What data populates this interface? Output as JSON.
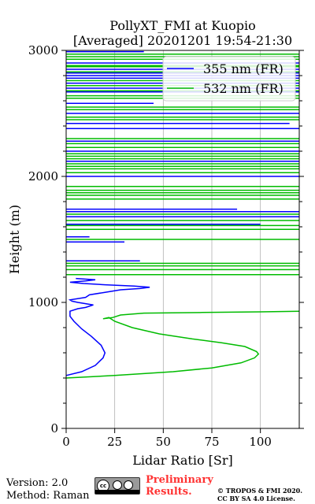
{
  "chart_data": {
    "type": "line",
    "title": "PollyXT_FMI at Kuopio",
    "subtitle": "[Averaged] 20201201 19:54-21:30",
    "xlabel": "Lidar Ratio [Sr]",
    "ylabel": "Height (m)",
    "xlim": [
      0,
      120
    ],
    "ylim": [
      0,
      3000
    ],
    "x_ticks": [
      0,
      25,
      50,
      75,
      100
    ],
    "y_ticks": [
      0,
      1000,
      2000,
      3000
    ],
    "grid": "vertical",
    "legend_position": "top-right",
    "colors": {
      "355": "#0000ff",
      "532": "#00bb00"
    },
    "series": [
      {
        "name": "355 nm (FR)",
        "color": "#0000ff",
        "points": [
          [
            0,
            420
          ],
          [
            8,
            450
          ],
          [
            15,
            500
          ],
          [
            19,
            560
          ],
          [
            20,
            600
          ],
          [
            18,
            660
          ],
          [
            13,
            730
          ],
          [
            8,
            790
          ],
          [
            4,
            850
          ],
          [
            2,
            890
          ],
          [
            2,
            930
          ],
          [
            6,
            950
          ],
          [
            10,
            960
          ],
          [
            14,
            980
          ],
          [
            10,
            990
          ],
          [
            6,
            1000
          ],
          [
            3,
            1010
          ],
          [
            2,
            1020
          ],
          [
            10,
            1040
          ],
          [
            12,
            1060
          ],
          [
            20,
            1080
          ],
          [
            28,
            1100
          ],
          [
            38,
            1110
          ],
          [
            43,
            1120
          ],
          [
            35,
            1130
          ],
          [
            20,
            1140
          ],
          [
            9,
            1150
          ],
          [
            2,
            1160
          ],
          [
            10,
            1170
          ],
          [
            15,
            1180
          ],
          [
            5,
            1190
          ]
        ],
        "segments": [
          {
            "h": 1330,
            "x": [
              0,
              38
            ]
          },
          {
            "h": 1480,
            "x": [
              0,
              30
            ]
          },
          {
            "h": 1520,
            "x": [
              0,
              12
            ]
          },
          {
            "h": 1620,
            "x": [
              0,
              100
            ]
          },
          {
            "h": 1680,
            "x": [
              0,
              120
            ]
          },
          {
            "h": 1720,
            "x": [
              0,
              120
            ]
          },
          {
            "h": 1740,
            "x": [
              0,
              88
            ]
          },
          {
            "h": 2000,
            "x": [
              0,
              120
            ]
          },
          {
            "h": 2120,
            "x": [
              0,
              120
            ]
          },
          {
            "h": 2200,
            "x": [
              0,
              120
            ]
          },
          {
            "h": 2280,
            "x": [
              0,
              120
            ]
          },
          {
            "h": 2380,
            "x": [
              0,
              120
            ]
          },
          {
            "h": 2420,
            "x": [
              0,
              115
            ]
          },
          {
            "h": 2500,
            "x": [
              0,
              120
            ]
          },
          {
            "h": 2580,
            "x": [
              0,
              45
            ]
          },
          {
            "h": 2670,
            "x": [
              0,
              120
            ]
          },
          {
            "h": 2700,
            "x": [
              0,
              120
            ]
          },
          {
            "h": 2740,
            "x": [
              0,
              120
            ]
          },
          {
            "h": 2780,
            "x": [
              0,
              120
            ]
          },
          {
            "h": 2800,
            "x": [
              0,
              120
            ]
          },
          {
            "h": 2820,
            "x": [
              0,
              120
            ]
          },
          {
            "h": 2850,
            "x": [
              0,
              120
            ]
          },
          {
            "h": 2900,
            "x": [
              0,
              120
            ]
          },
          {
            "h": 2990,
            "x": [
              0,
              40
            ]
          }
        ]
      },
      {
        "name": "532 nm (FR)",
        "color": "#00bb00",
        "points": [
          [
            0,
            400
          ],
          [
            25,
            420
          ],
          [
            55,
            450
          ],
          [
            75,
            480
          ],
          [
            90,
            520
          ],
          [
            97,
            560
          ],
          [
            99,
            590
          ],
          [
            98,
            610
          ],
          [
            92,
            650
          ],
          [
            80,
            680
          ],
          [
            65,
            710
          ],
          [
            48,
            750
          ],
          [
            34,
            800
          ],
          [
            25,
            850
          ],
          [
            22,
            880
          ],
          [
            19,
            870
          ],
          [
            24,
            880
          ],
          [
            28,
            900
          ],
          [
            40,
            915
          ],
          [
            70,
            920
          ],
          [
            100,
            925
          ],
          [
            120,
            930
          ]
        ],
        "segments": [
          {
            "h": 1220,
            "x": [
              0,
              120
            ]
          },
          {
            "h": 1260,
            "x": [
              0,
              120
            ]
          },
          {
            "h": 1290,
            "x": [
              0,
              120
            ]
          },
          {
            "h": 1310,
            "x": [
              0,
              120
            ]
          },
          {
            "h": 1500,
            "x": [
              0,
              120
            ]
          },
          {
            "h": 1580,
            "x": [
              0,
              120
            ]
          },
          {
            "h": 1610,
            "x": [
              0,
              120
            ]
          },
          {
            "h": 1650,
            "x": [
              0,
              120
            ]
          },
          {
            "h": 1700,
            "x": [
              0,
              120
            ]
          },
          {
            "h": 1820,
            "x": [
              0,
              120
            ]
          },
          {
            "h": 1850,
            "x": [
              0,
              120
            ]
          },
          {
            "h": 1870,
            "x": [
              0,
              120
            ]
          },
          {
            "h": 1890,
            "x": [
              0,
              120
            ]
          },
          {
            "h": 1920,
            "x": [
              0,
              120
            ]
          },
          {
            "h": 2030,
            "x": [
              0,
              120
            ]
          },
          {
            "h": 2060,
            "x": [
              0,
              120
            ]
          },
          {
            "h": 2080,
            "x": [
              0,
              120
            ]
          },
          {
            "h": 2100,
            "x": [
              0,
              120
            ]
          },
          {
            "h": 2140,
            "x": [
              0,
              120
            ]
          },
          {
            "h": 2160,
            "x": [
              0,
              120
            ]
          },
          {
            "h": 2180,
            "x": [
              0,
              120
            ]
          },
          {
            "h": 2230,
            "x": [
              0,
              120
            ]
          },
          {
            "h": 2260,
            "x": [
              0,
              120
            ]
          },
          {
            "h": 2300,
            "x": [
              0,
              120
            ]
          },
          {
            "h": 2450,
            "x": [
              0,
              120
            ]
          },
          {
            "h": 2470,
            "x": [
              0,
              120
            ]
          },
          {
            "h": 2530,
            "x": [
              0,
              120
            ]
          },
          {
            "h": 2550,
            "x": [
              0,
              120
            ]
          },
          {
            "h": 2620,
            "x": [
              0,
              120
            ]
          },
          {
            "h": 2640,
            "x": [
              0,
              120
            ]
          },
          {
            "h": 2680,
            "x": [
              0,
              120
            ]
          },
          {
            "h": 2720,
            "x": [
              0,
              120
            ]
          },
          {
            "h": 2760,
            "x": [
              0,
              120
            ]
          },
          {
            "h": 2830,
            "x": [
              0,
              120
            ]
          },
          {
            "h": 2870,
            "x": [
              0,
              120
            ]
          },
          {
            "h": 2880,
            "x": [
              0,
              120
            ]
          },
          {
            "h": 2930,
            "x": [
              0,
              120
            ]
          },
          {
            "h": 2950,
            "x": [
              0,
              120
            ]
          },
          {
            "h": 2970,
            "x": [
              0,
              120
            ]
          }
        ]
      }
    ]
  },
  "footer": {
    "version": "Version: 2.0",
    "method": "Method: Raman",
    "preliminary_line1": "Preliminary",
    "preliminary_line2": "Results.",
    "copyright_line1": "© TROPOS & FMI 2020.",
    "copyright_line2": "CC BY SA 4.0 License.",
    "license_badge": "cc",
    "license_icons": [
      "cc-icon",
      "by-icon",
      "sa-icon"
    ]
  }
}
